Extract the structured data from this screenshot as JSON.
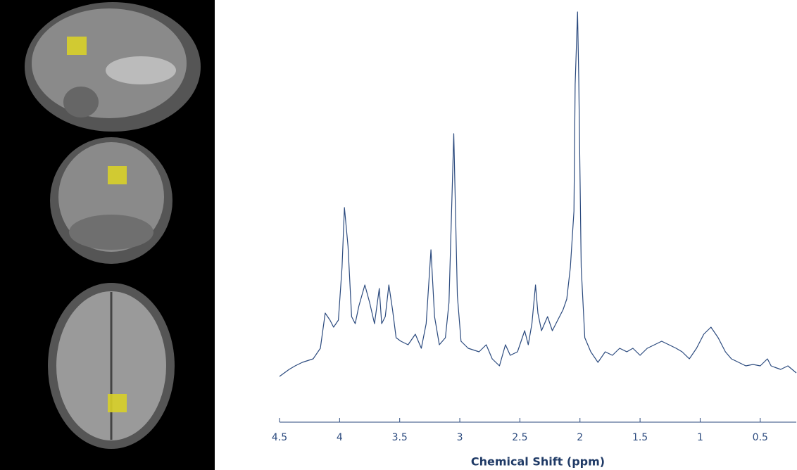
{
  "chart_data": {
    "type": "line",
    "x_label": "Chemical Shift (ppm)",
    "x": [
      4.5,
      4.42,
      4.37,
      4.31,
      4.22,
      4.16,
      4.12,
      4.08,
      4.05,
      4.01,
      3.98,
      3.96,
      3.93,
      3.9,
      3.87,
      3.84,
      3.79,
      3.75,
      3.71,
      3.67,
      3.65,
      3.62,
      3.59,
      3.56,
      3.53,
      3.49,
      3.43,
      3.37,
      3.32,
      3.28,
      3.24,
      3.21,
      3.17,
      3.12,
      3.09,
      3.05,
      3.02,
      2.99,
      2.93,
      2.84,
      2.78,
      2.73,
      2.67,
      2.62,
      2.58,
      2.52,
      2.46,
      2.43,
      2.4,
      2.37,
      2.35,
      2.32,
      2.27,
      2.23,
      2.2,
      2.14,
      2.11,
      2.08,
      2.05,
      2.04,
      2.02,
      2.01,
      1.99,
      1.96,
      1.91,
      1.85,
      1.79,
      1.73,
      1.67,
      1.61,
      1.56,
      1.5,
      1.44,
      1.38,
      1.32,
      1.26,
      1.2,
      1.15,
      1.09,
      1.03,
      0.97,
      0.91,
      0.85,
      0.79,
      0.74,
      0.68,
      0.62,
      0.56,
      0.5,
      0.44,
      0.41,
      0.38,
      0.33,
      0.27,
      0.2
    ],
    "series": [
      {
        "color": "#2b4a7e",
        "values": [
          5,
          7,
          8,
          9,
          10,
          13,
          23,
          21,
          19,
          21,
          36,
          53,
          42,
          22,
          20,
          25,
          31,
          26,
          20,
          30,
          20,
          22,
          31,
          24,
          16,
          15,
          14,
          17,
          13,
          20,
          41,
          22,
          14,
          16,
          26,
          74,
          28,
          15,
          13,
          12,
          14,
          10,
          8,
          14,
          11,
          12,
          18,
          14,
          20,
          31,
          23,
          18,
          22,
          18,
          20,
          24,
          27,
          36,
          52,
          88,
          108.6,
          90,
          36,
          16,
          12,
          9,
          12,
          11,
          13,
          12,
          13,
          11,
          13,
          14,
          15,
          14,
          13,
          12,
          10,
          13,
          17,
          19,
          16,
          12,
          10,
          9,
          8,
          8.4,
          8,
          10,
          8,
          7.6,
          7,
          8,
          6
        ]
      }
    ],
    "xlim": [
      4.5,
      0.2
    ],
    "ylim": [
      0,
      110
    ],
    "xticks": [
      4.5,
      4,
      3.5,
      3,
      2.5,
      2,
      1.5,
      1,
      0.5
    ]
  }
}
